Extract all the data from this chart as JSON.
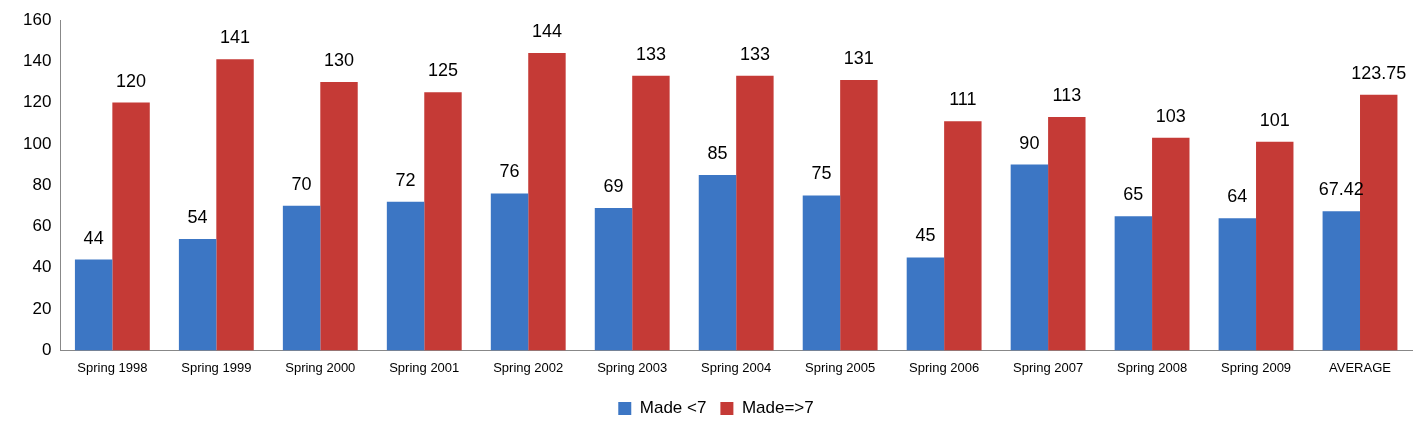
{
  "chart_data": {
    "type": "bar",
    "categories": [
      "Spring 1998",
      "Spring 1999",
      "Spring 2000",
      "Spring 2001",
      "Spring 2002",
      "Spring 2003",
      "Spring 2004",
      "Spring 2005",
      "Spring 2006",
      "Spring 2007",
      "Spring 2008",
      "Spring 2009",
      "AVERAGE"
    ],
    "series": [
      {
        "name": "Made <7",
        "color": "#3c76c4",
        "values": [
          44,
          54,
          70,
          72,
          76,
          69,
          85,
          75,
          45,
          90,
          65,
          64,
          67.42
        ]
      },
      {
        "name": "Made=>7",
        "color": "#c53a36",
        "values": [
          120,
          141,
          130,
          125,
          144,
          133,
          133,
          131,
          111,
          113,
          103,
          101,
          123.75
        ]
      }
    ],
    "ylim": [
      0,
      160
    ],
    "yticks": [
      0,
      20,
      40,
      60,
      80,
      100,
      120,
      140,
      160
    ],
    "grid": false,
    "legend": "bottom",
    "data_labels": true
  }
}
